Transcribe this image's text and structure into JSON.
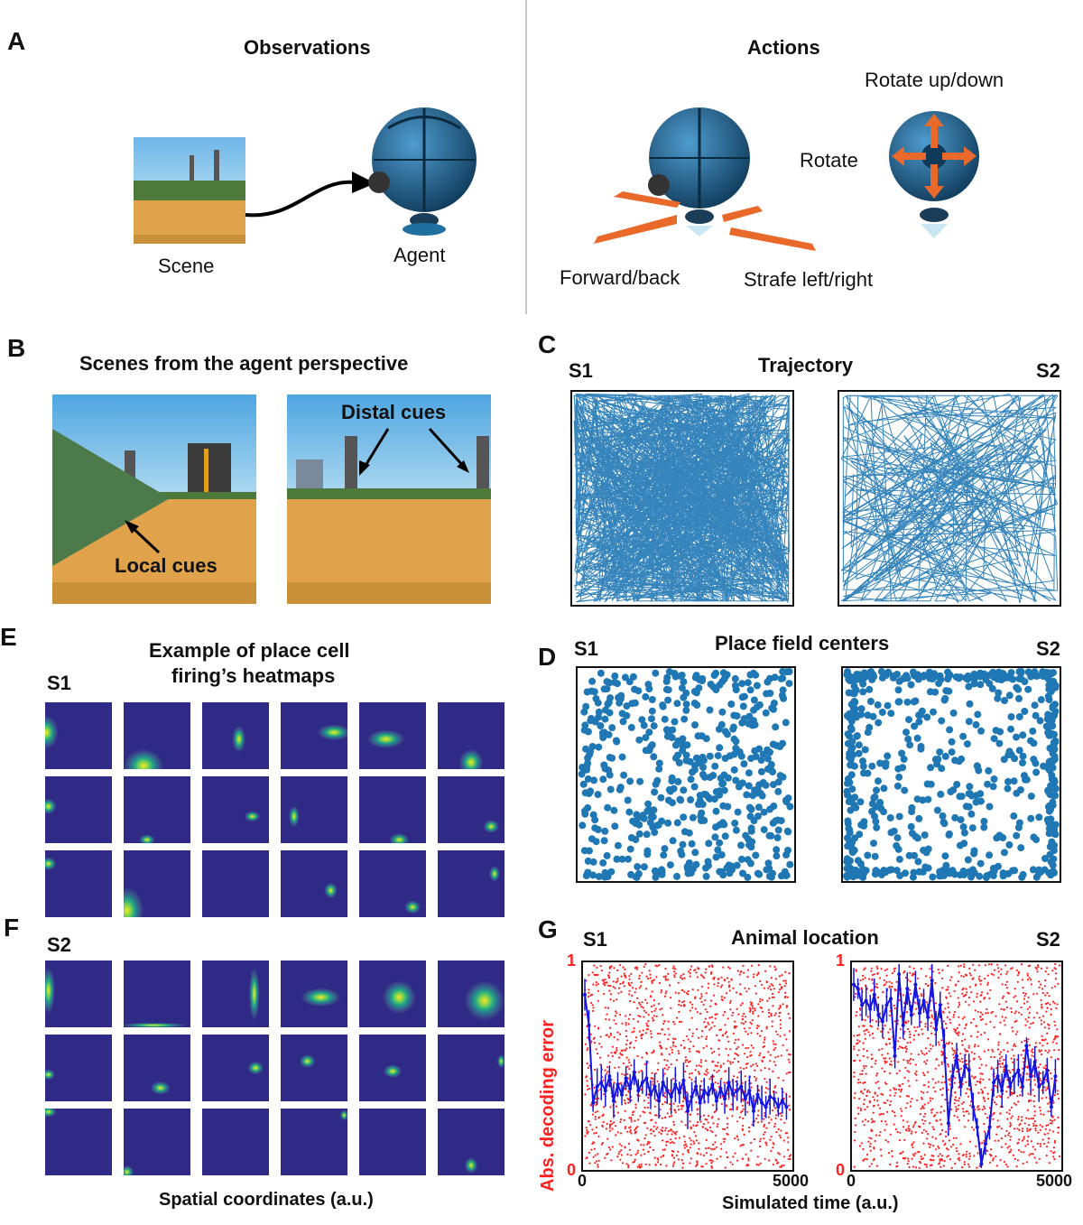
{
  "panels": {
    "A": {
      "label": "A",
      "observations_title": "Observations",
      "actions_title": "Actions",
      "scene_label": "Scene",
      "agent_label": "Agent",
      "rotate_updown": "Rotate up/down",
      "rotate": "Rotate",
      "forward_back": "Forward/back",
      "strafe": "Strafe left/right"
    },
    "B": {
      "label": "B",
      "title": "Scenes from the agent perspective",
      "local_cues": "Local cues",
      "distal_cues": "Distal cues"
    },
    "C": {
      "label": "C",
      "title": "Trajectory",
      "left": "S1",
      "right": "S2"
    },
    "D": {
      "label": "D",
      "title": "Place field  centers",
      "left": "S1",
      "right": "S2"
    },
    "E": {
      "label": "E",
      "title_line1": "Example of place cell",
      "title_line2": "firing’s  heatmaps",
      "session": "S1"
    },
    "F": {
      "label": "F",
      "session": "S2",
      "xlabel": "Spatial coordinates (a.u.)"
    },
    "G": {
      "label": "G",
      "title": "Animal  location",
      "left": "S1",
      "right": "S2",
      "ylabel": "Abs. decoding error",
      "xlabel": "Simulated time (a.u.)",
      "y_tick_top": "1",
      "y_tick_bottom": "0",
      "x_tick_left": "0",
      "x_tick_right": "5000"
    }
  },
  "colors": {
    "trajectory": "#1f77b4",
    "scatter_red": "#ff2020",
    "decode_line": "#1515e0",
    "heatmap_bg": "#2f2a86",
    "arrow_orange": "#e8692a",
    "agent_blue": "#1f5f8f"
  },
  "chart_data": [
    {
      "type": "scatter",
      "title": "Animal  location",
      "series": [
        {
          "name": "S1"
        }
      ],
      "xlim": [
        0,
        5000
      ],
      "ylim": [
        0,
        1
      ],
      "x": [
        0,
        100,
        200,
        300,
        400,
        500,
        600,
        700,
        800,
        900,
        1000,
        1100,
        1200,
        1300,
        1400,
        1500,
        1600,
        1700,
        1800,
        1900,
        2000,
        2100,
        2200,
        2300,
        2400,
        2500,
        2600,
        2700,
        2800,
        2900,
        3000,
        3100,
        3200,
        3300,
        3400,
        3500,
        3600,
        3700,
        3800,
        3900,
        4000,
        4100,
        4200,
        4300,
        4400,
        4500,
        4600,
        4700,
        4800,
        4900
      ],
      "y": [
        0.85,
        0.7,
        0.32,
        0.4,
        0.42,
        0.38,
        0.45,
        0.33,
        0.41,
        0.36,
        0.44,
        0.39,
        0.47,
        0.38,
        0.42,
        0.44,
        0.36,
        0.4,
        0.33,
        0.42,
        0.38,
        0.35,
        0.41,
        0.37,
        0.43,
        0.28,
        0.35,
        0.4,
        0.32,
        0.38,
        0.36,
        0.41,
        0.33,
        0.39,
        0.34,
        0.42,
        0.36,
        0.38,
        0.4,
        0.34,
        0.38,
        0.28,
        0.36,
        0.32,
        0.3,
        0.35,
        0.34,
        0.3,
        0.33,
        0.3
      ]
    },
    {
      "type": "scatter",
      "series": [
        {
          "name": "S2"
        }
      ],
      "xlim": [
        0,
        5000
      ],
      "ylim": [
        0,
        1
      ],
      "x": [
        0,
        100,
        200,
        300,
        400,
        500,
        600,
        700,
        800,
        900,
        1000,
        1100,
        1200,
        1300,
        1400,
        1500,
        1600,
        1700,
        1800,
        1900,
        2000,
        2100,
        2200,
        2300,
        2400,
        2500,
        2600,
        2700,
        2800,
        2900,
        3000,
        3100,
        3200,
        3300,
        3400,
        3500,
        3600,
        3700,
        3800,
        3900,
        4000,
        4100,
        4200,
        4300,
        4400,
        4500,
        4600,
        4700,
        4800,
        4900
      ],
      "y": [
        0.9,
        0.88,
        0.8,
        0.82,
        0.78,
        0.85,
        0.75,
        0.72,
        0.8,
        0.83,
        0.55,
        0.95,
        0.7,
        0.88,
        0.75,
        0.9,
        0.76,
        0.82,
        0.74,
        0.92,
        0.68,
        0.8,
        0.6,
        0.22,
        0.45,
        0.55,
        0.4,
        0.5,
        0.48,
        0.3,
        0.2,
        0.02,
        0.12,
        0.2,
        0.42,
        0.45,
        0.38,
        0.5,
        0.4,
        0.45,
        0.48,
        0.4,
        0.6,
        0.45,
        0.52,
        0.4,
        0.42,
        0.48,
        0.3,
        0.45
      ]
    }
  ]
}
